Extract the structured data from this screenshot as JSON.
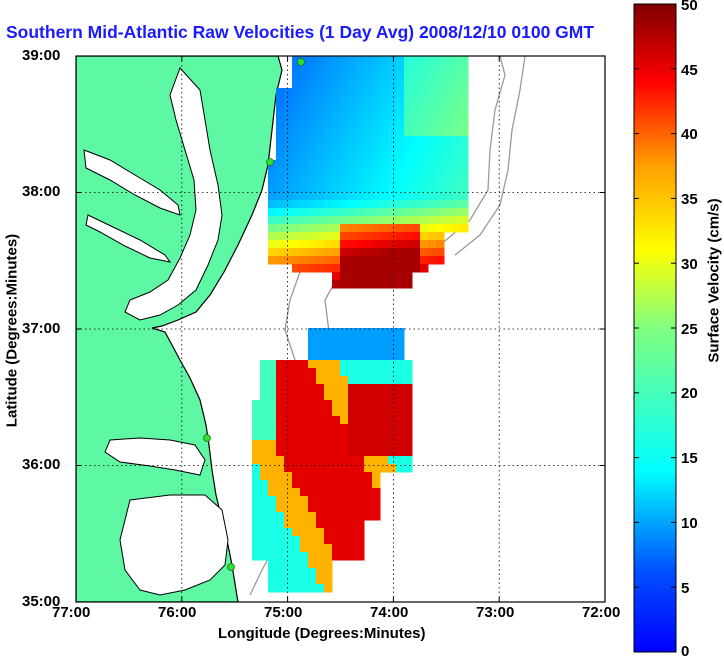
{
  "title": "Southern Mid-Atlantic Raw Velocities (1 Day Avg) 2008/12/10 0100 GMT",
  "x_axis": {
    "label": "Longitude (Degrees:Minutes)",
    "ticks": [
      "77:00",
      "76:00",
      "75:00",
      "74:00",
      "73:00",
      "72:00"
    ]
  },
  "y_axis": {
    "label": "Latitude (Degrees:Minutes)",
    "ticks": [
      "39:00",
      "38:00",
      "37:00",
      "36:00",
      "35:00"
    ]
  },
  "colorbar": {
    "label": "Surface Velocity (cm/s)",
    "ticks": [
      "50",
      "45",
      "40",
      "35",
      "30",
      "25",
      "20",
      "15",
      "10",
      "5",
      "0"
    ],
    "min": 0,
    "max": 50,
    "colormap": "jet"
  },
  "colors": {
    "land": "#5ef7a4",
    "coastline": "#000000",
    "bathymetry": "#9a9a9a",
    "station_markers": "#33dd33",
    "title": "#1a1aff"
  },
  "map_extent": {
    "lon_min": -77,
    "lon_max": -72,
    "lat_min": 35,
    "lat_max": 39
  }
}
